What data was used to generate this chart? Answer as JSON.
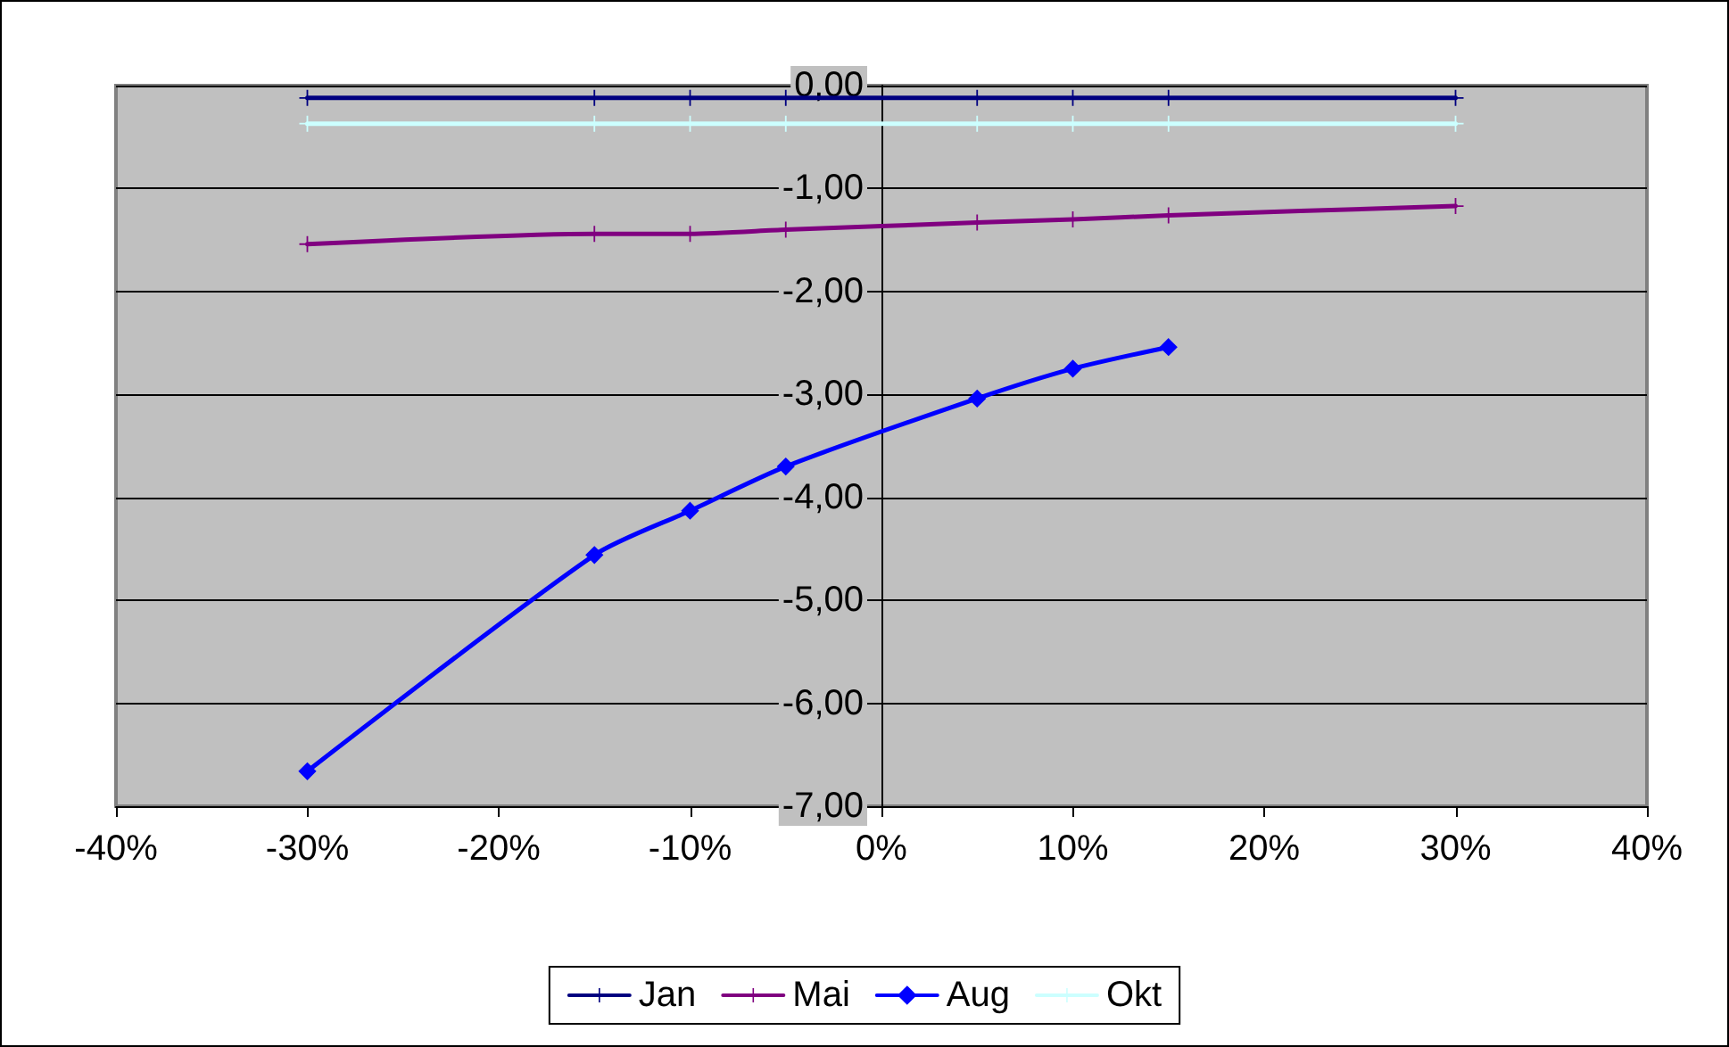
{
  "chart_data": {
    "type": "line",
    "x": [
      -30,
      -15,
      -10,
      -5,
      5,
      10,
      15,
      30
    ],
    "series": [
      {
        "name": "Jan",
        "color": "#000080",
        "marker": "cross",
        "values": [
          -0.12,
          -0.12,
          -0.12,
          -0.12,
          -0.12,
          -0.12,
          -0.12,
          -0.12
        ]
      },
      {
        "name": "Mai",
        "color": "#800080",
        "marker": "cross",
        "values": [
          -1.54,
          -1.44,
          -1.44,
          -1.4,
          -1.33,
          -1.3,
          -1.26,
          -1.17
        ]
      },
      {
        "name": "Aug",
        "color": "#0000ff",
        "marker": "diamond",
        "values": [
          -6.66,
          -4.56,
          -4.13,
          -3.7,
          -3.04,
          -2.75,
          -2.54,
          null
        ]
      },
      {
        "name": "Okt",
        "color": "#ccffff",
        "marker": "cross",
        "values": [
          -0.37,
          -0.37,
          -0.37,
          -0.37,
          -0.37,
          -0.37,
          -0.37,
          -0.37
        ]
      }
    ],
    "xlim": [
      -40,
      40
    ],
    "xticks": [
      {
        "value": -40,
        "label": "-40%"
      },
      {
        "value": -30,
        "label": "-30%"
      },
      {
        "value": -20,
        "label": "-20%"
      },
      {
        "value": -10,
        "label": "-10%"
      },
      {
        "value": 0,
        "label": "0%"
      },
      {
        "value": 10,
        "label": "10%"
      },
      {
        "value": 20,
        "label": "20%"
      },
      {
        "value": 30,
        "label": "30%"
      },
      {
        "value": 40,
        "label": "40%"
      }
    ],
    "ylim": [
      -7,
      0
    ],
    "yticks": [
      {
        "value": -7,
        "label": "-7,00"
      },
      {
        "value": -6,
        "label": "-6,00"
      },
      {
        "value": -5,
        "label": "-5,00"
      },
      {
        "value": -4,
        "label": "-4,00"
      },
      {
        "value": -3,
        "label": "-3,00"
      },
      {
        "value": -2,
        "label": "-2,00"
      },
      {
        "value": -1,
        "label": "-1,00"
      },
      {
        "value": 0,
        "label": "0,00"
      }
    ],
    "grid": "y",
    "legend": "bottom",
    "line_style": "solid"
  }
}
